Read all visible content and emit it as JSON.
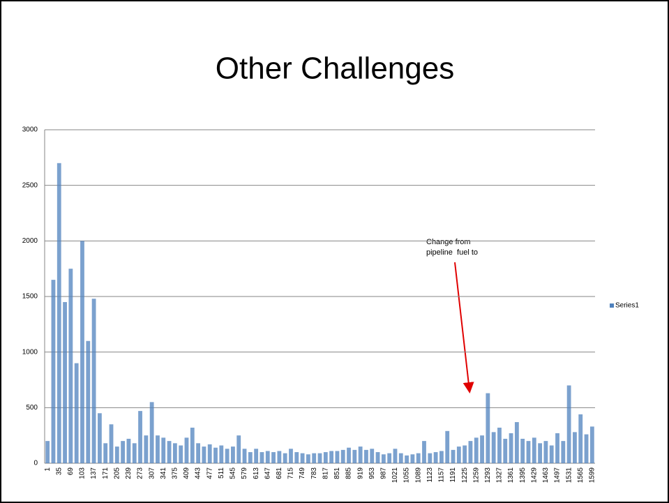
{
  "chart_data": {
    "type": "bar",
    "title": "Other Challenges",
    "categories": [
      "1",
      null,
      "35",
      null,
      "69",
      null,
      "103",
      null,
      "137",
      null,
      "171",
      null,
      "205",
      null,
      "239",
      null,
      "273",
      null,
      "307",
      null,
      "341",
      null,
      "375",
      null,
      "409",
      null,
      "443",
      null,
      "477",
      null,
      "511",
      null,
      "545",
      null,
      "579",
      null,
      "613",
      null,
      "647",
      null,
      "681",
      null,
      "715",
      null,
      "749",
      null,
      "783",
      null,
      "817",
      null,
      "851",
      null,
      "885",
      null,
      "919",
      null,
      "953",
      null,
      "987",
      null,
      "1021",
      null,
      "1055",
      null,
      "1089",
      null,
      "1123",
      null,
      "1157",
      null,
      "1191",
      null,
      "1225",
      null,
      "1259",
      null,
      "1293",
      null,
      "1327",
      null,
      "1361",
      null,
      "1395",
      null,
      "1429",
      null,
      "1463",
      null,
      "1497",
      null,
      "1531",
      null,
      "1565",
      null,
      "1599"
    ],
    "series": [
      {
        "name": "Series1",
        "color": "#4f81bd",
        "values": [
          200,
          1650,
          2700,
          1450,
          1750,
          900,
          2000,
          1100,
          1480,
          450,
          180,
          350,
          150,
          200,
          220,
          180,
          470,
          250,
          550,
          250,
          230,
          200,
          180,
          160,
          230,
          320,
          180,
          150,
          170,
          140,
          160,
          130,
          150,
          250,
          130,
          100,
          130,
          100,
          110,
          100,
          110,
          90,
          130,
          100,
          90,
          80,
          90,
          90,
          100,
          110,
          110,
          120,
          140,
          120,
          150,
          120,
          130,
          100,
          80,
          90,
          130,
          90,
          70,
          80,
          90,
          200,
          90,
          100,
          110,
          290,
          120,
          150,
          160,
          200,
          230,
          250,
          630,
          280,
          320,
          220,
          270,
          370,
          220,
          200,
          230,
          180,
          200,
          160,
          270,
          200,
          700,
          280,
          440,
          260,
          330
        ]
      }
    ],
    "ylim": [
      0,
      3000
    ],
    "yticks": [
      0,
      500,
      1000,
      1500,
      2000,
      2500,
      3000
    ],
    "grid": true,
    "legend": "right",
    "annotations": [
      "Change from",
      "pipeline  fuel to"
    ]
  }
}
